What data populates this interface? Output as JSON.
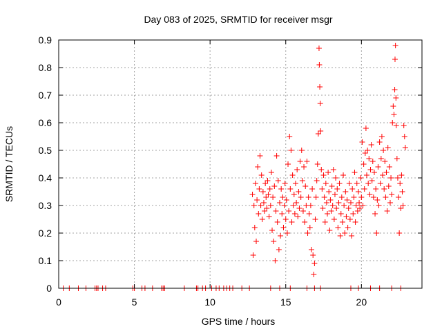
{
  "chart_data": {
    "type": "scatter",
    "title": "Day 083 of 2025, SRMTID for receiver msgr",
    "xlabel": "GPS time / hours",
    "ylabel": "SRMTID / TECUs",
    "xlim": [
      0,
      24
    ],
    "ylim": [
      0,
      0.9
    ],
    "xticks": [
      0,
      5,
      10,
      15,
      20
    ],
    "xtick_labels": [
      "0",
      "5",
      "10",
      "15",
      "20"
    ],
    "yticks": [
      0,
      0.1,
      0.2,
      0.3,
      0.4,
      0.5,
      0.6,
      0.7,
      0.8,
      0.9
    ],
    "ytick_labels": [
      "0",
      "0.1",
      "0.2",
      "0.3",
      "0.4",
      "0.5",
      "0.6",
      "0.7",
      "0.8",
      "0.9"
    ],
    "grid": true,
    "marker": "plus",
    "color": "#ff0000",
    "series": [
      {
        "name": "SRMTID",
        "points": [
          [
            0.3,
            0
          ],
          [
            0.7,
            0
          ],
          [
            1.3,
            0
          ],
          [
            1.8,
            0
          ],
          [
            2.4,
            0
          ],
          [
            2.5,
            0
          ],
          [
            2.6,
            0
          ],
          [
            2.9,
            0
          ],
          [
            3.1,
            0
          ],
          [
            4.9,
            0
          ],
          [
            5.0,
            0
          ],
          [
            5.5,
            0
          ],
          [
            5.7,
            0
          ],
          [
            6.2,
            0
          ],
          [
            6.8,
            0
          ],
          [
            6.9,
            0
          ],
          [
            7.0,
            0
          ],
          [
            8.3,
            0
          ],
          [
            9.1,
            0
          ],
          [
            9.2,
            0
          ],
          [
            9.5,
            0
          ],
          [
            9.7,
            0
          ],
          [
            10.1,
            0
          ],
          [
            10.4,
            0
          ],
          [
            10.6,
            0
          ],
          [
            10.9,
            0
          ],
          [
            11.1,
            0
          ],
          [
            11.3,
            0
          ],
          [
            11.5,
            0
          ],
          [
            12.1,
            0
          ],
          [
            12.6,
            0
          ],
          [
            14.0,
            0
          ],
          [
            14.6,
            0
          ],
          [
            15.3,
            0
          ],
          [
            16.4,
            0
          ],
          [
            16.9,
            0
          ],
          [
            17.3,
            0
          ],
          [
            19.3,
            0
          ],
          [
            19.8,
            0
          ],
          [
            20.6,
            0
          ],
          [
            21.2,
            0
          ],
          [
            22.0,
            0
          ],
          [
            22.6,
            0
          ],
          [
            12.8,
            0.34
          ],
          [
            12.85,
            0.12
          ],
          [
            12.9,
            0.3
          ],
          [
            12.95,
            0.22
          ],
          [
            13.0,
            0.38
          ],
          [
            13.05,
            0.17
          ],
          [
            13.1,
            0.32
          ],
          [
            13.15,
            0.44
          ],
          [
            13.2,
            0.27
          ],
          [
            13.25,
            0.36
          ],
          [
            13.3,
            0.48
          ],
          [
            13.35,
            0.3
          ],
          [
            13.4,
            0.41
          ],
          [
            13.45,
            0.25
          ],
          [
            13.5,
            0.35
          ],
          [
            13.55,
            0.31
          ],
          [
            13.6,
            0.28
          ],
          [
            13.65,
            0.38
          ],
          [
            13.7,
            0.33
          ],
          [
            13.75,
            0.29
          ],
          [
            13.8,
            0.39
          ],
          [
            13.85,
            0.34
          ],
          [
            13.9,
            0.26
          ],
          [
            13.95,
            0.36
          ],
          [
            14.0,
            0.3
          ],
          [
            14.05,
            0.42
          ],
          [
            14.1,
            0.21
          ],
          [
            14.15,
            0.33
          ],
          [
            14.2,
            0.17
          ],
          [
            14.25,
            0.37
          ],
          [
            14.3,
            0.1
          ],
          [
            14.35,
            0.28
          ],
          [
            14.4,
            0.48
          ],
          [
            14.45,
            0.24
          ],
          [
            14.5,
            0.39
          ],
          [
            14.55,
            0.14
          ],
          [
            14.6,
            0.31
          ],
          [
            14.65,
            0.19
          ],
          [
            14.7,
            0.36
          ],
          [
            14.75,
            0.27
          ],
          [
            14.8,
            0.33
          ],
          [
            14.85,
            0.22
          ],
          [
            14.9,
            0.3
          ],
          [
            14.95,
            0.38
          ],
          [
            15.0,
            0.25
          ],
          [
            15.05,
            0.32
          ],
          [
            15.1,
            0.2
          ],
          [
            15.15,
            0.45
          ],
          [
            15.2,
            0.28
          ],
          [
            15.25,
            0.55
          ],
          [
            15.3,
            0.36
          ],
          [
            15.35,
            0.5
          ],
          [
            15.4,
            0.24
          ],
          [
            15.45,
            0.41
          ],
          [
            15.5,
            0.3
          ],
          [
            15.55,
            0.34
          ],
          [
            15.6,
            0.27
          ],
          [
            15.65,
            0.38
          ],
          [
            15.7,
            0.31
          ],
          [
            15.75,
            0.43
          ],
          [
            15.8,
            0.26
          ],
          [
            15.85,
            0.35
          ],
          [
            15.9,
            0.29
          ],
          [
            15.95,
            0.46
          ],
          [
            16.0,
            0.33
          ],
          [
            16.05,
            0.5
          ],
          [
            16.1,
            0.39
          ],
          [
            16.15,
            0.28
          ],
          [
            16.2,
            0.44
          ],
          [
            16.25,
            0.24
          ],
          [
            16.3,
            0.37
          ],
          [
            16.35,
            0.3
          ],
          [
            16.4,
            0.46
          ],
          [
            16.45,
            0.2
          ],
          [
            16.5,
            0.33
          ],
          [
            16.55,
            0.27
          ],
          [
            16.6,
            0.22
          ],
          [
            16.65,
            0.3
          ],
          [
            16.7,
            0.14
          ],
          [
            16.75,
            0.36
          ],
          [
            16.8,
            0.12
          ],
          [
            16.85,
            0.05
          ],
          [
            16.9,
            0.09
          ],
          [
            16.95,
            0.25
          ],
          [
            17.0,
            0.33
          ],
          [
            17.05,
            0.39
          ],
          [
            17.1,
            0.45
          ],
          [
            17.15,
            0.56
          ],
          [
            17.2,
            0.87
          ],
          [
            17.22,
            0.81
          ],
          [
            17.25,
            0.73
          ],
          [
            17.28,
            0.67
          ],
          [
            17.3,
            0.57
          ],
          [
            17.35,
            0.43
          ],
          [
            17.4,
            0.36
          ],
          [
            17.45,
            0.29
          ],
          [
            17.5,
            0.41
          ],
          [
            17.55,
            0.33
          ],
          [
            17.6,
            0.24
          ],
          [
            17.65,
            0.38
          ],
          [
            17.7,
            0.31
          ],
          [
            17.75,
            0.27
          ],
          [
            17.8,
            0.42
          ],
          [
            17.85,
            0.35
          ],
          [
            17.9,
            0.21
          ],
          [
            17.95,
            0.32
          ],
          [
            18.0,
            0.28
          ],
          [
            18.05,
            0.37
          ],
          [
            18.1,
            0.3
          ],
          [
            18.15,
            0.43
          ],
          [
            18.2,
            0.25
          ],
          [
            18.25,
            0.34
          ],
          [
            18.3,
            0.4
          ],
          [
            18.35,
            0.29
          ],
          [
            18.4,
            0.36
          ],
          [
            18.45,
            0.22
          ],
          [
            18.5,
            0.31
          ],
          [
            18.55,
            0.38
          ],
          [
            18.6,
            0.19
          ],
          [
            18.65,
            0.27
          ],
          [
            18.7,
            0.33
          ],
          [
            18.75,
            0.24
          ],
          [
            18.8,
            0.41
          ],
          [
            18.85,
            0.3
          ],
          [
            18.9,
            0.2
          ],
          [
            18.95,
            0.35
          ],
          [
            19.0,
            0.26
          ],
          [
            19.05,
            0.32
          ],
          [
            19.1,
            0.22
          ],
          [
            19.15,
            0.29
          ],
          [
            19.2,
            0.38
          ],
          [
            19.25,
            0.25
          ],
          [
            19.3,
            0.31
          ],
          [
            19.35,
            0.19
          ],
          [
            19.4,
            0.36
          ],
          [
            19.45,
            0.27
          ],
          [
            19.5,
            0.33
          ],
          [
            19.55,
            0.42
          ],
          [
            19.6,
            0.24
          ],
          [
            19.65,
            0.3
          ],
          [
            19.7,
            0.38
          ],
          [
            19.75,
            0.28
          ],
          [
            19.8,
            0.35
          ],
          [
            19.85,
            0.31
          ],
          [
            19.9,
            0.29
          ],
          [
            19.95,
            0.4
          ],
          [
            20.0,
            0.33
          ],
          [
            20.05,
            0.53
          ],
          [
            20.1,
            0.3
          ],
          [
            20.15,
            0.45
          ],
          [
            20.2,
            0.36
          ],
          [
            20.25,
            0.49
          ],
          [
            20.3,
            0.58
          ],
          [
            20.35,
            0.41
          ],
          [
            20.4,
            0.5
          ],
          [
            20.45,
            0.38
          ],
          [
            20.5,
            0.47
          ],
          [
            20.55,
            0.34
          ],
          [
            20.6,
            0.43
          ],
          [
            20.65,
            0.52
          ],
          [
            20.7,
            0.39
          ],
          [
            20.75,
            0.46
          ],
          [
            20.8,
            0.33
          ],
          [
            20.85,
            0.42
          ],
          [
            20.9,
            0.27
          ],
          [
            20.95,
            0.36
          ],
          [
            21.0,
            0.2
          ],
          [
            21.05,
            0.32
          ],
          [
            21.1,
            0.44
          ],
          [
            21.15,
            0.3
          ],
          [
            21.2,
            0.53
          ],
          [
            21.25,
            0.38
          ],
          [
            21.3,
            0.47
          ],
          [
            21.35,
            0.55
          ],
          [
            21.4,
            0.41
          ],
          [
            21.45,
            0.5
          ],
          [
            21.5,
            0.36
          ],
          [
            21.55,
            0.46
          ],
          [
            21.6,
            0.33
          ],
          [
            21.65,
            0.42
          ],
          [
            21.7,
            0.28
          ],
          [
            21.75,
            0.51
          ],
          [
            21.8,
            0.37
          ],
          [
            21.85,
            0.44
          ],
          [
            21.9,
            0.31
          ],
          [
            21.95,
            0.4
          ],
          [
            22.0,
            0.34
          ],
          [
            22.05,
            0.6
          ],
          [
            22.1,
            0.66
          ],
          [
            22.15,
            0.63
          ],
          [
            22.2,
            0.72
          ],
          [
            22.22,
            0.83
          ],
          [
            22.25,
            0.88
          ],
          [
            22.28,
            0.69
          ],
          [
            22.3,
            0.59
          ],
          [
            22.35,
            0.47
          ],
          [
            22.4,
            0.4
          ],
          [
            22.45,
            0.33
          ],
          [
            22.5,
            0.2
          ],
          [
            22.55,
            0.38
          ],
          [
            22.6,
            0.29
          ],
          [
            22.65,
            0.41
          ],
          [
            22.7,
            0.35
          ],
          [
            22.75,
            0.3
          ],
          [
            22.8,
            0.59
          ],
          [
            22.85,
            0.55
          ],
          [
            22.9,
            0.51
          ]
        ]
      }
    ]
  }
}
